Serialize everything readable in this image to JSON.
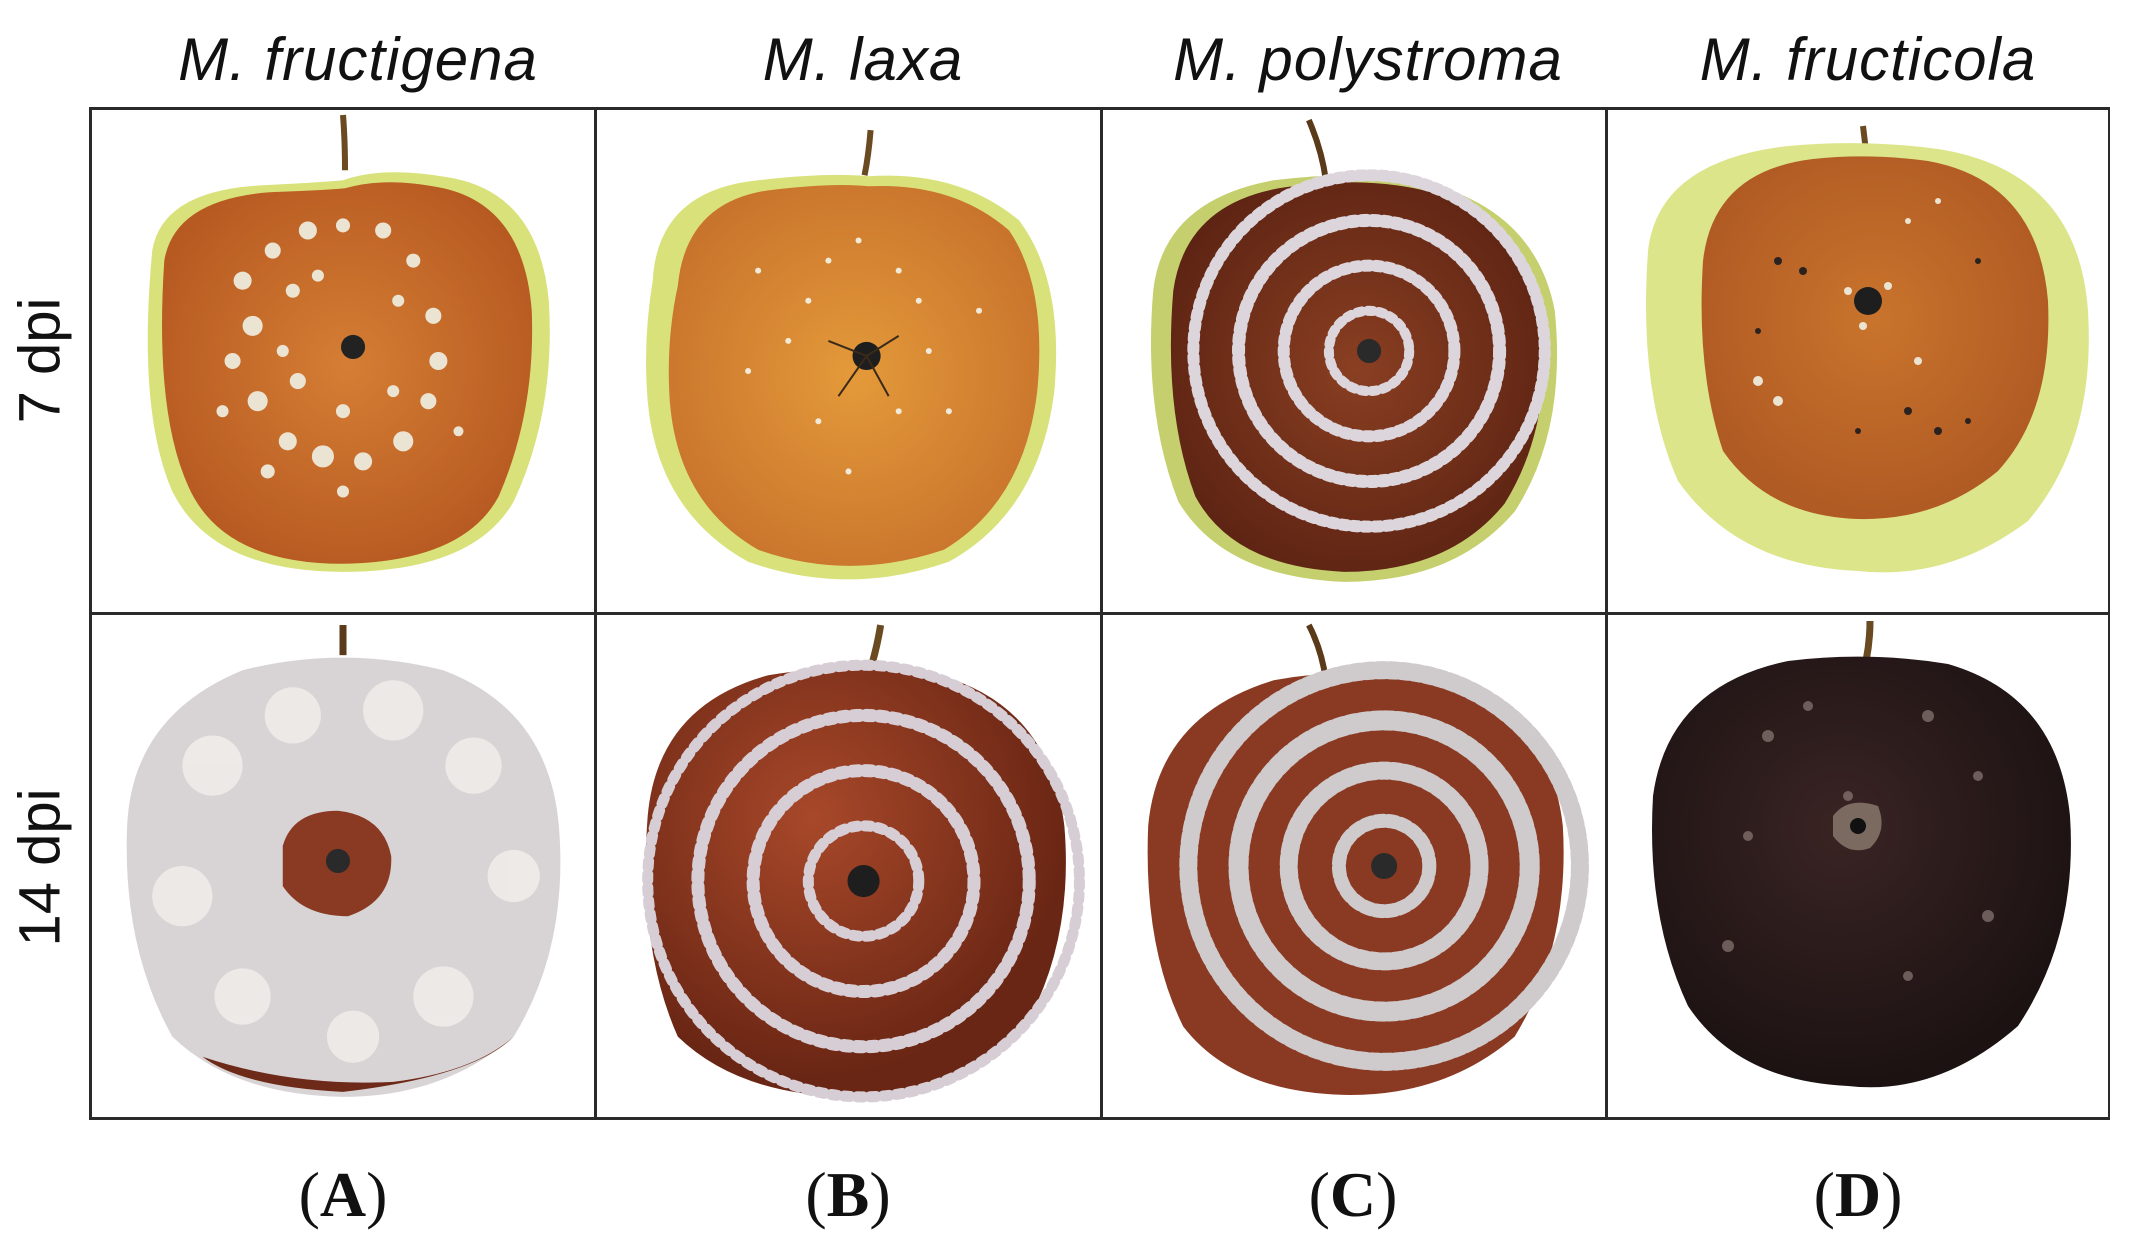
{
  "columns": [
    {
      "species": "M. fructigena",
      "panel_letter": "A"
    },
    {
      "species": "M. laxa",
      "panel_letter": "B"
    },
    {
      "species": "M. polystroma",
      "panel_letter": "C"
    },
    {
      "species": "M. fructicola",
      "panel_letter": "D"
    }
  ],
  "rows": [
    {
      "label": "7 dpi"
    },
    {
      "label": "14 dpi"
    }
  ],
  "colors": {
    "grid_line": "#2a2a2a",
    "apple_green": "#d9e27a",
    "rot_orange": "#c9742c",
    "rot_brown": "#7a3018",
    "rot_dark": "#2b1a1a",
    "mycelium": "#e6e2e0"
  }
}
